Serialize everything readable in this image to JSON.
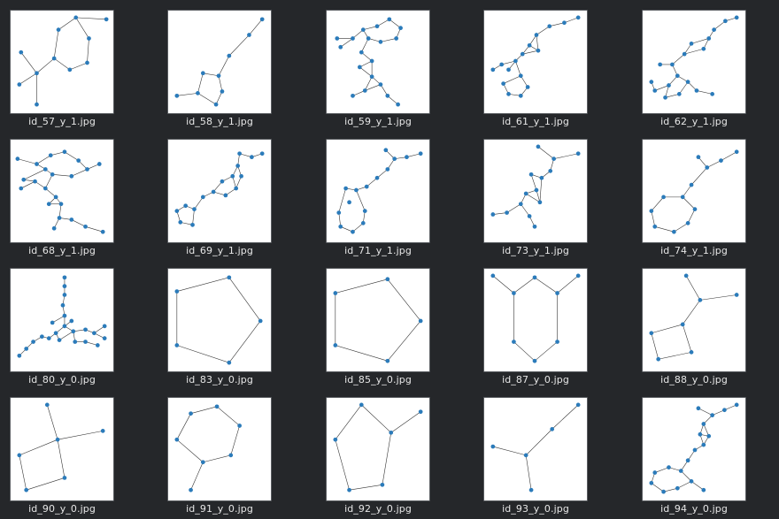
{
  "colors": {
    "background": "#25272a",
    "thumb_bg": "#ffffff",
    "node": "#2b7bba",
    "edge": "#333333",
    "label": "#e6e6e6"
  },
  "files": [
    "id_57_y_1.jpg",
    "id_58_y_1.jpg",
    "id_59_y_1.jpg",
    "id_61_y_1.jpg",
    "id_62_y_1.jpg",
    "id_68_y_1.jpg",
    "id_69_y_1.jpg",
    "id_71_y_1.jpg",
    "id_73_y_1.jpg",
    "id_74_y_1.jpg",
    "id_80_y_0.jpg",
    "id_83_y_0.jpg",
    "id_85_y_0.jpg",
    "id_87_y_0.jpg",
    "id_88_y_0.jpg",
    "id_90_y_0.jpg",
    "id_91_y_0.jpg",
    "id_92_y_0.jpg",
    "id_93_y_0.jpg",
    "id_94_y_0.jpg"
  ]
}
